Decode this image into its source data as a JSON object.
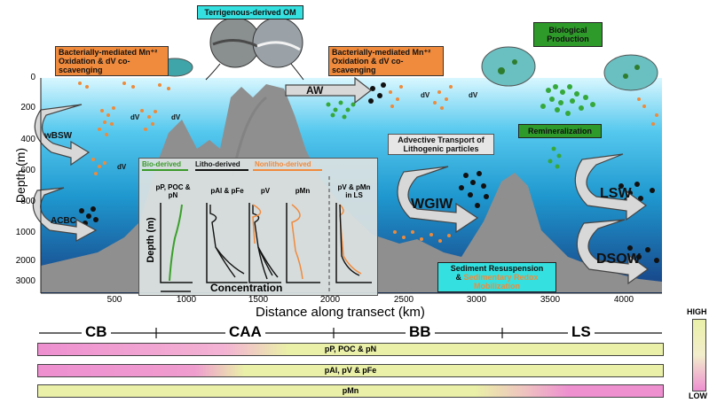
{
  "top": {
    "terrigenous": "Terrigenous-derived OM",
    "bact_left": "Bacterially-mediated Mn⁺² Oxidation & dV co-scavenging",
    "bact_right": "Bacterially-mediated Mn⁺² Oxidation & dV co-scavenging",
    "bio_prod": "Biological Production",
    "remin": "Remineralization",
    "advective": "Advective Transport of Lithogenic particles",
    "sediment_line1": "Sediment Resuspension",
    "sediment_amp": "&",
    "sediment_line2": "Sedimentary Redox Mobilization"
  },
  "water_masses": {
    "aw": "AW",
    "wbsw": "wBSW",
    "acbc": "ACBC",
    "wgiw": "WGIW",
    "lsw": "LSW",
    "dsow": "DSOW"
  },
  "dv_label": "dV",
  "axes": {
    "ylabel": "Depth (m)",
    "yticks": [
      "0",
      "200",
      "400",
      "600",
      "800",
      "1000",
      "2000",
      "3000"
    ],
    "xlabel": "Distance along transect (km)",
    "xticks": [
      "500",
      "1000",
      "1500",
      "2000",
      "2500",
      "3000",
      "3500",
      "4000"
    ]
  },
  "inset": {
    "bio": "Bio-derived",
    "litho": "Litho-derived",
    "nonlitho": "Nonlitho-derived",
    "panels": [
      "pP, POC & pN",
      "pAl & pFe",
      "pV",
      "pMn",
      "pV & pMn in LS"
    ],
    "ylabel": "Depth (m)",
    "xlabel": "Concentration"
  },
  "regions": [
    "CB",
    "CAA",
    "BB",
    "LS"
  ],
  "bars": [
    "pP, POC & pN",
    "pAl, pV & pFe",
    "pMn"
  ],
  "legend": {
    "high": "HIGH",
    "low": "LOW"
  },
  "colors": {
    "pink": "#ee8fd0",
    "yellowgreen": "#eaf0a8",
    "ocean_top": "#bff0ff",
    "ocean_bottom": "#1e4f8c",
    "seafloor": "#8c8c8c"
  }
}
